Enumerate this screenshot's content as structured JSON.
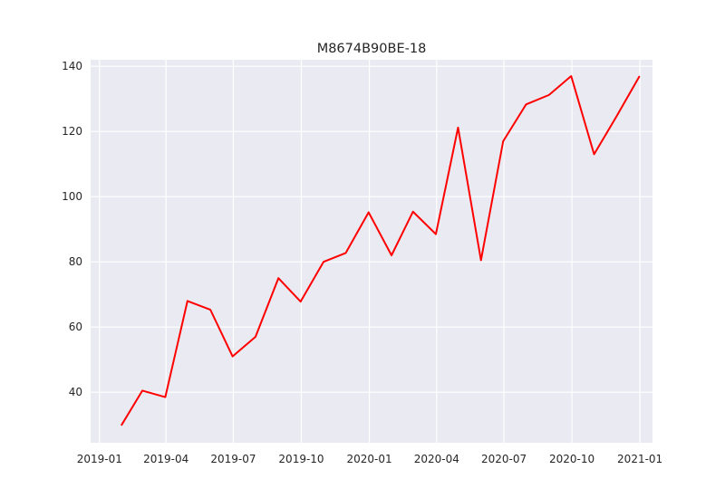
{
  "chart_data": {
    "type": "line",
    "title": "M8674B90BE-18",
    "xlabel": "",
    "ylabel": "",
    "x_axis_type": "date",
    "xlim": [
      "2018-12-20",
      "2021-01-18"
    ],
    "ylim": [
      24.5,
      142
    ],
    "grid": true,
    "legend": "none",
    "x_ticks": [
      {
        "value": "2019-01-01",
        "label": "2019-01"
      },
      {
        "value": "2019-04-01",
        "label": "2019-04"
      },
      {
        "value": "2019-07-01",
        "label": "2019-07"
      },
      {
        "value": "2019-10-01",
        "label": "2019-10"
      },
      {
        "value": "2020-01-01",
        "label": "2020-01"
      },
      {
        "value": "2020-04-01",
        "label": "2020-04"
      },
      {
        "value": "2020-07-01",
        "label": "2020-07"
      },
      {
        "value": "2020-10-01",
        "label": "2020-10"
      },
      {
        "value": "2021-01-01",
        "label": "2021-01"
      }
    ],
    "y_ticks": [
      40,
      60,
      80,
      100,
      120,
      140
    ],
    "colors": {
      "background": "#eaeaf2",
      "grid": "#ffffff",
      "text": "#262626"
    },
    "series": [
      {
        "color": "#ff0000",
        "x": [
          "2019-01-31",
          "2019-02-28",
          "2019-03-31",
          "2019-04-30",
          "2019-05-31",
          "2019-06-30",
          "2019-07-31",
          "2019-08-31",
          "2019-09-30",
          "2019-10-31",
          "2019-11-30",
          "2019-12-31",
          "2020-01-31",
          "2020-02-29",
          "2020-03-31",
          "2020-04-30",
          "2020-05-31",
          "2020-06-30",
          "2020-07-31",
          "2020-08-31",
          "2020-09-30",
          "2020-10-31",
          "2020-11-30",
          "2020-12-31"
        ],
        "values": [
          30.0,
          40.5,
          38.5,
          68.0,
          65.3,
          51.0,
          57.0,
          75.0,
          67.8,
          80.0,
          82.7,
          95.2,
          82.0,
          95.4,
          88.5,
          121.2,
          80.5,
          117.0,
          128.3,
          131.2,
          137.0,
          113.0,
          124.5,
          136.8
        ]
      }
    ]
  }
}
